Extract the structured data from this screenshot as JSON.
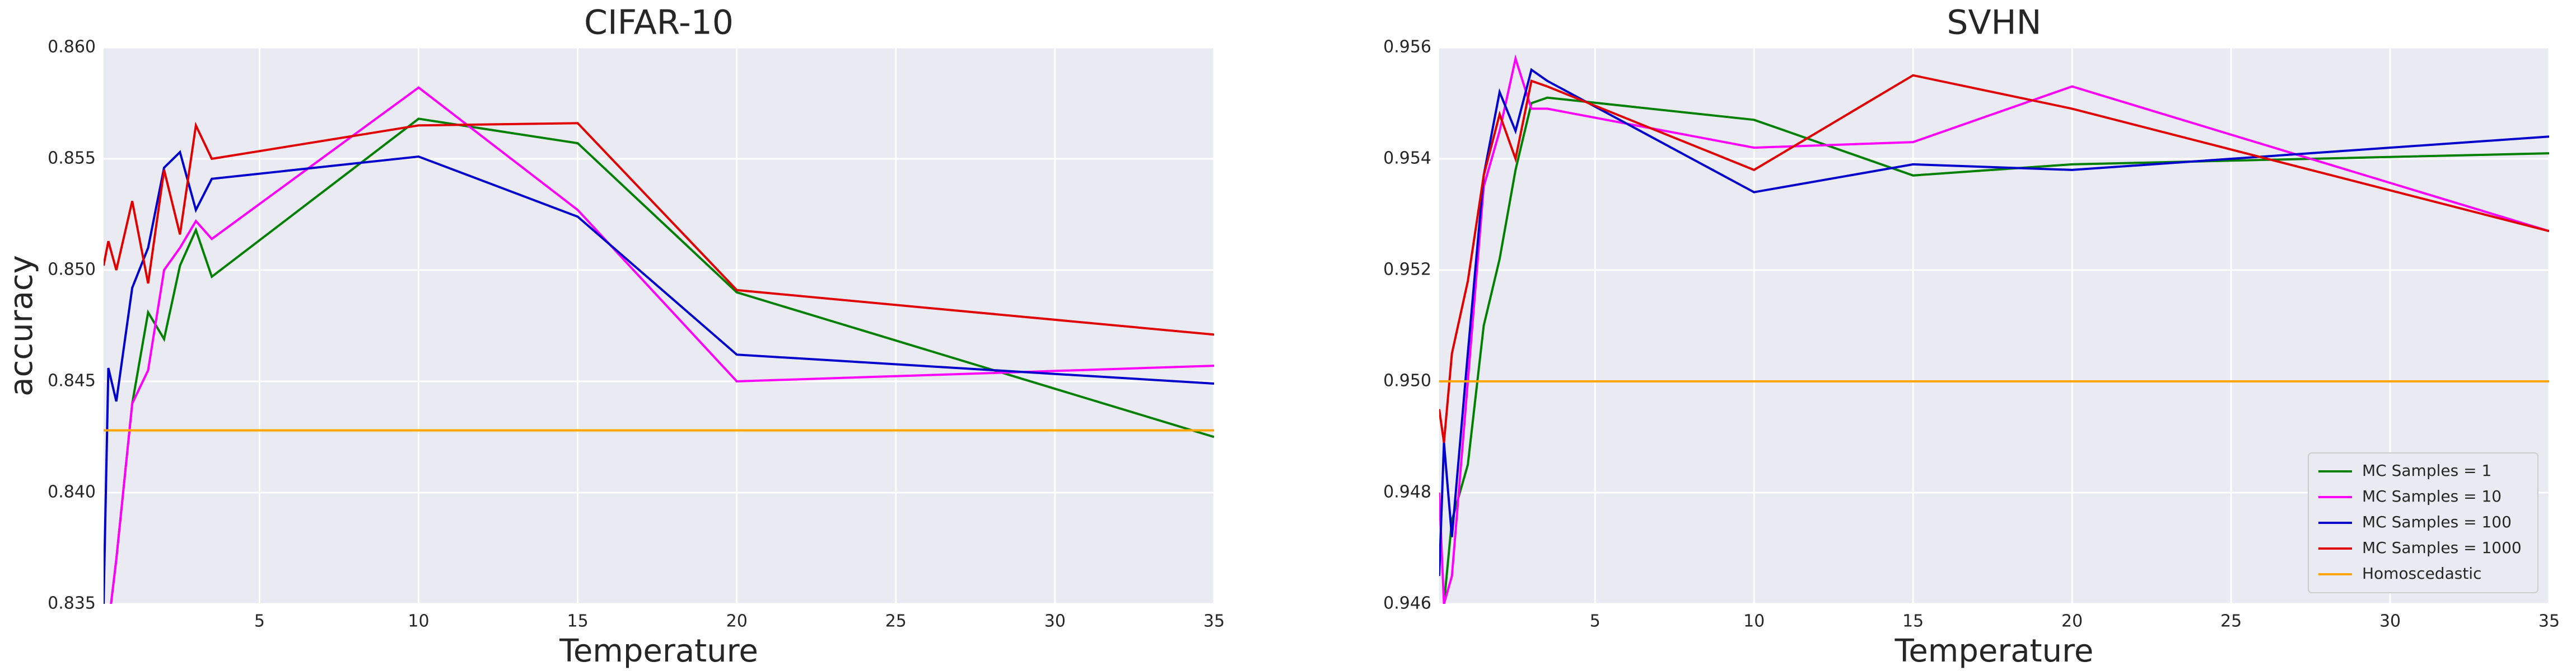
{
  "chart_data": [
    {
      "type": "line",
      "title": "CIFAR-10",
      "xlabel": "Temperature",
      "ylabel": "accuracy",
      "x": [
        0.1,
        0.25,
        0.5,
        1,
        1.5,
        2,
        2.5,
        3,
        3.5,
        10,
        15,
        20,
        35
      ],
      "xlim": [
        0.1,
        35
      ],
      "xticks": [
        5,
        10,
        15,
        20,
        25,
        30,
        35
      ],
      "ylim": [
        0.835,
        0.86
      ],
      "yticks": [
        0.835,
        {
          "value": 0.84,
          "label": "0.840"
        },
        0.845,
        {
          "value": 0.85,
          "label": "0.850"
        },
        0.855,
        {
          "value": 0.86,
          "label": "0.860"
        }
      ],
      "grid": true,
      "series": [
        {
          "name": "MC Samples = 1",
          "color": "#008000",
          "values": [
            0.8345,
            0.834,
            0.837,
            0.844,
            0.8481,
            0.8469,
            0.8502,
            0.8518,
            0.8497,
            0.8568,
            0.8557,
            0.849,
            0.8425
          ]
        },
        {
          "name": "MC Samples = 10",
          "color": "#ff00ff",
          "values": [
            0.8345,
            0.834,
            0.837,
            0.844,
            0.8455,
            0.85,
            0.851,
            0.8522,
            0.8514,
            0.8582,
            0.8527,
            0.845,
            0.8457
          ]
        },
        {
          "name": "MC Samples = 100",
          "color": "#0000cd",
          "values": [
            0.835,
            0.8456,
            0.8441,
            0.8492,
            0.851,
            0.8546,
            0.8553,
            0.8527,
            0.8541,
            0.8551,
            0.8524,
            0.8462,
            0.8449
          ]
        },
        {
          "name": "MC Samples = 1000",
          "color": "#e00000",
          "values": [
            0.8502,
            0.8513,
            0.85,
            0.8531,
            0.8494,
            0.8545,
            0.8516,
            0.8565,
            0.855,
            0.8565,
            0.8566,
            0.8491,
            0.8471
          ]
        },
        {
          "name": "Homoscedastic",
          "color": "#ffa500",
          "x": [
            0.1,
            35
          ],
          "values": [
            0.8428,
            0.8428
          ]
        }
      ]
    },
    {
      "type": "line",
      "title": "SVHN",
      "xlabel": "Temperature",
      "x": [
        0.1,
        0.25,
        0.5,
        1,
        1.5,
        2,
        2.5,
        3,
        3.5,
        10,
        15,
        20,
        35
      ],
      "xlim": [
        0.1,
        35
      ],
      "xticks": [
        5,
        10,
        15,
        20,
        25,
        30,
        35
      ],
      "ylim": [
        0.946,
        0.956
      ],
      "yticks": [
        0.946,
        0.948,
        {
          "value": 0.95,
          "label": "0.950"
        },
        0.952,
        0.954,
        0.956
      ],
      "grid": true,
      "legend": "lower right",
      "series": [
        {
          "name": "MC Samples = 1",
          "color": "#008000",
          "values": [
            0.9455,
            0.946,
            0.9475,
            0.9485,
            0.951,
            0.9522,
            0.9538,
            0.955,
            0.9551,
            0.9547,
            0.9537,
            0.9539,
            0.9541
          ]
        },
        {
          "name": "MC Samples = 10",
          "color": "#ff00ff",
          "values": [
            0.948,
            0.946,
            0.9465,
            0.95,
            0.9535,
            0.9545,
            0.9558,
            0.9549,
            0.9549,
            0.9542,
            0.9543,
            0.9553,
            0.9527
          ]
        },
        {
          "name": "MC Samples = 100",
          "color": "#0000cd",
          "values": [
            0.9465,
            0.9489,
            0.9472,
            0.9505,
            0.9537,
            0.9552,
            0.9545,
            0.9556,
            0.9554,
            0.9534,
            0.9539,
            0.9538,
            0.9544
          ]
        },
        {
          "name": "MC Samples = 1000",
          "color": "#e00000",
          "values": [
            0.9495,
            0.9489,
            0.9505,
            0.9518,
            0.9537,
            0.9548,
            0.954,
            0.9554,
            0.9553,
            0.9538,
            0.9555,
            0.9549,
            0.9527
          ]
        },
        {
          "name": "Homoscedastic",
          "color": "#ffa500",
          "x": [
            0.1,
            35
          ],
          "values": [
            0.95,
            0.95
          ]
        }
      ]
    }
  ]
}
